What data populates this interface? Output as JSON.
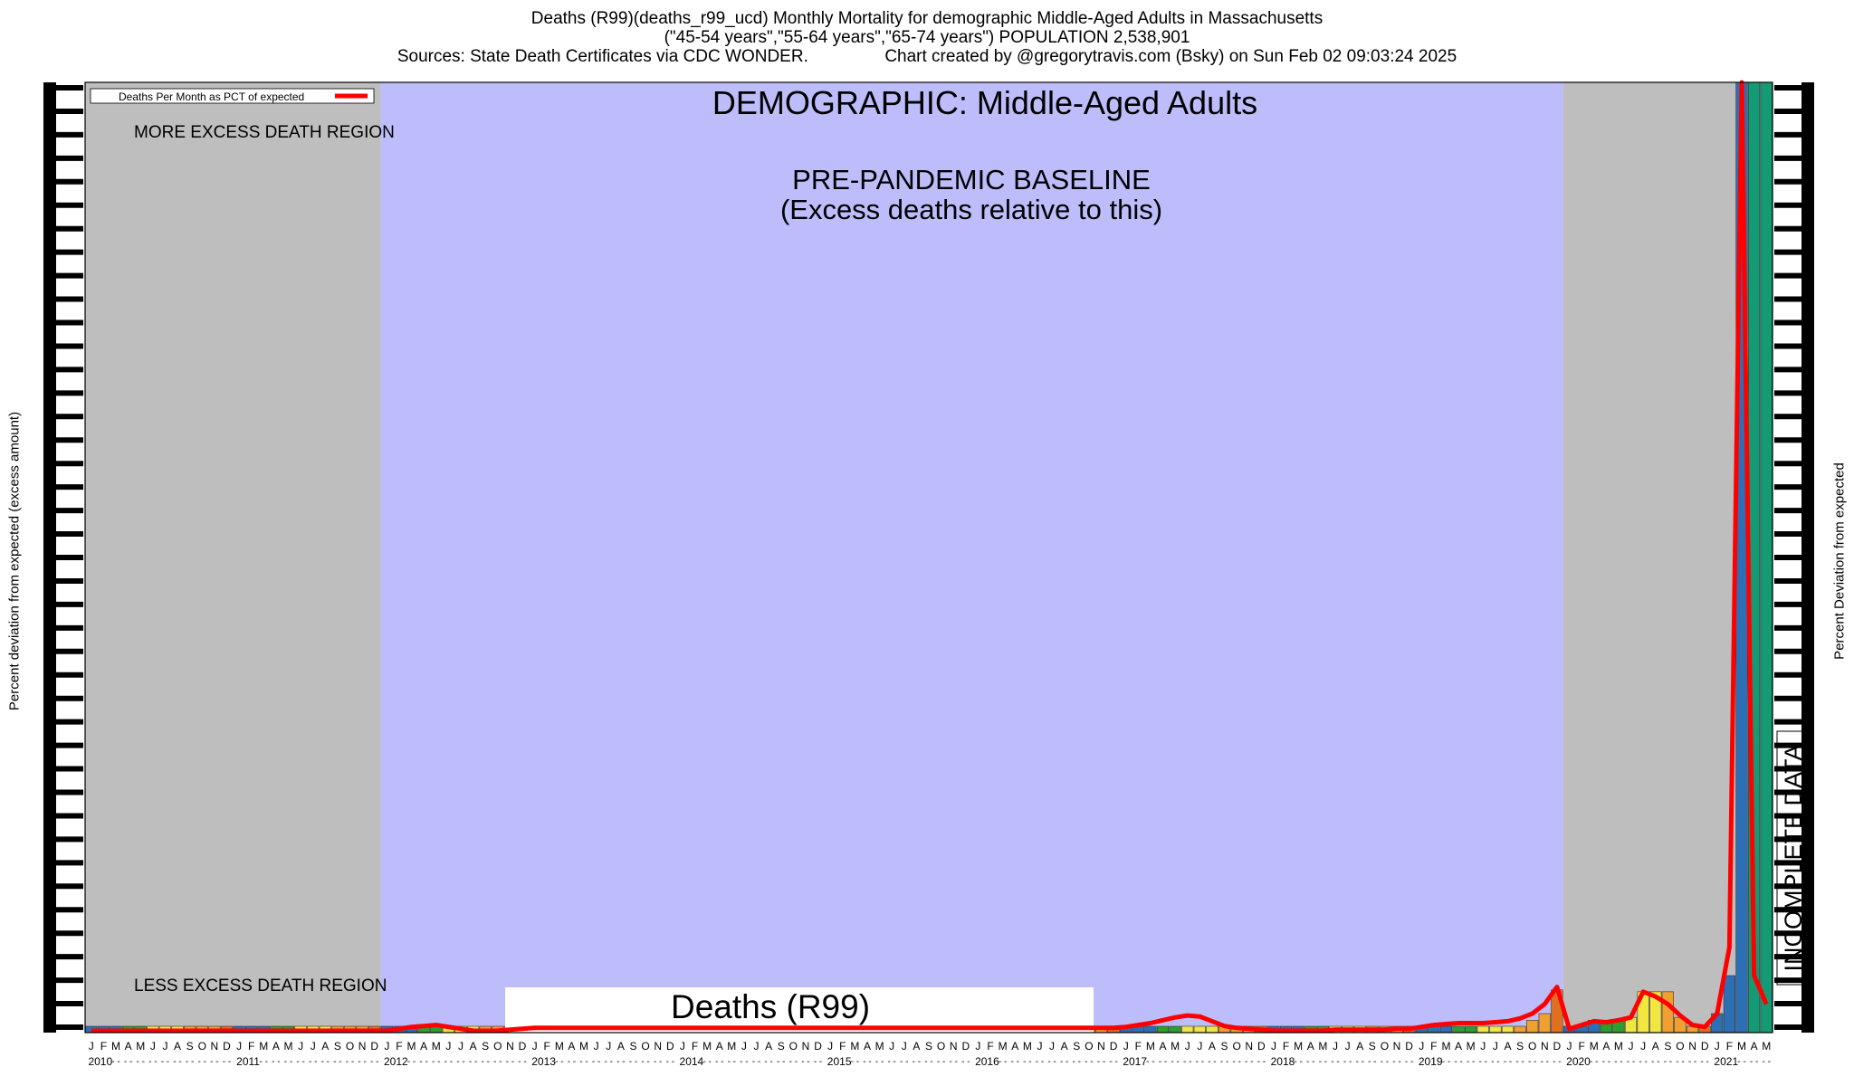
{
  "header": {
    "line1": "Deaths (R99)(deaths_r99_ucd) Monthly Mortality for demographic Middle-Aged Adults in Massachusetts",
    "line2": "(\"45-54 years\",\"55-64 years\",\"65-74 years\") POPULATION 2,538,901",
    "line3": "Sources: State Death Certificates via CDC WONDER.                Chart created by @gregorytravis.com (Bsky) on Sun Feb 02 09:03:24 2025"
  },
  "chart_data": {
    "type": "bar",
    "title": "DEMOGRAPHIC: Middle-Aged Adults",
    "ylabel_left": "Percent deviation from expected (excess amount)",
    "ylabel_right": "Percent Deviation from expected",
    "legend": {
      "label": "Deaths Per Month as PCT of expected",
      "color": "#ff0000",
      "position": "top-left"
    },
    "regions": [
      {
        "label": "MORE EXCESS DEATH REGION",
        "color": "#bebebe"
      },
      {
        "label": "LESS EXCESS DEATH REGION",
        "color": "#bebebe"
      },
      {
        "label": "PRE-PANDEMIC BASELINE",
        "label2": "(Excess deaths relative to this)",
        "color": "#bdbdfc",
        "start": "2012-01",
        "end": "2019-12"
      },
      {
        "label": "INCOMPLETE DATA",
        "color": "#bebebe"
      }
    ],
    "overlay_label": "Deaths (R99)",
    "month_letters": [
      "J",
      "F",
      "M",
      "A",
      "M",
      "J",
      "J",
      "A",
      "S",
      "O",
      "N",
      "D"
    ],
    "years": [
      "2010",
      "2011",
      "2012",
      "2013",
      "2014",
      "2015",
      "2016",
      "2017",
      "2018",
      "2019",
      "2020",
      "2021"
    ],
    "x_start": "2010-01",
    "x_end": "2021-05",
    "ylim": [
      0,
      100
    ],
    "series": [
      {
        "color": "#ff0000",
        "values": [
          0,
          0,
          0,
          0,
          0,
          0,
          0,
          0,
          0,
          0,
          0,
          0,
          0,
          0,
          0,
          0,
          0,
          0,
          0,
          0,
          0,
          0,
          0,
          0,
          0.2,
          0.4,
          0.6,
          0.7,
          0.8,
          0.6,
          0.4,
          0.2,
          0.0,
          0.2,
          0.3,
          0.4,
          0.5,
          0.5,
          0.5,
          0.5,
          0.5,
          0.5,
          0.5,
          0.5,
          0.5,
          0.5,
          0.5,
          0.5,
          0.5,
          0.5,
          0.5,
          0.5,
          0.5,
          0.5,
          0.5,
          0.5,
          0.5,
          0.5,
          0.5,
          0.5,
          0.5,
          0.5,
          0.5,
          0.5,
          0.5,
          0.5,
          0.5,
          0.5,
          0.5,
          0.5,
          0.5,
          0.5,
          0.5,
          0.5,
          0.5,
          0.5,
          0.5,
          0.5,
          0.5,
          0.5,
          0.5,
          0.5,
          0.5,
          0.5,
          0.6,
          0.8,
          1.0,
          1.3,
          1.6,
          1.8,
          1.7,
          1.2,
          0.7,
          0.5,
          0.4,
          0.3,
          0.2,
          0.2,
          0.2,
          0.2,
          0.2,
          0.3,
          0.3,
          0.3,
          0.3,
          0.3,
          0.4,
          0.4,
          0.6,
          0.8,
          0.9,
          1.0,
          1.0,
          1.0,
          1.1,
          1.2,
          1.5,
          2.0,
          3.0,
          4.8,
          0.4,
          0.8,
          1.2,
          1.1,
          1.3,
          1.6,
          4.3,
          3.8,
          3.0,
          1.8,
          0.8,
          0.6,
          2.0,
          9.0,
          100.0,
          6.0,
          3.0
        ]
      }
    ],
    "bar_values": [
      0.7,
      0.7,
      0.7,
      0.7,
      0.7,
      0.7,
      0.7,
      0.7,
      0.7,
      0.7,
      0.7,
      0.7,
      0.7,
      0.7,
      0.7,
      0.7,
      0.7,
      0.7,
      0.7,
      0.7,
      0.7,
      0.7,
      0.7,
      0.7,
      0.5,
      0.5,
      0.5,
      0.5,
      0.5,
      0.5,
      0.5,
      0.5,
      0.5,
      0.5,
      0.5,
      0.5,
      0.5,
      0.5,
      0.5,
      0.5,
      0.5,
      0.5,
      0.5,
      0.5,
      0.5,
      0.5,
      0.5,
      0.5,
      0.5,
      0.5,
      0.5,
      0.5,
      0.5,
      0.5,
      0.5,
      0.5,
      0.5,
      0.5,
      0.5,
      0.5,
      0.5,
      0.5,
      0.5,
      0.5,
      0.5,
      0.5,
      0.5,
      0.5,
      0.5,
      0.5,
      0.5,
      0.5,
      0.5,
      0.5,
      0.5,
      0.5,
      0.5,
      0.5,
      0.5,
      0.5,
      0.5,
      0.5,
      0.5,
      0.5,
      0.5,
      0.5,
      0.5,
      0.5,
      0.5,
      0.5,
      0.5,
      0.5,
      0.5,
      0.5,
      0.5,
      0.5,
      0.7,
      0.7,
      0.7,
      0.7,
      0.7,
      0.7,
      0.7,
      0.7,
      0.7,
      0.7,
      0.7,
      0.7,
      0.5,
      0.5,
      0.5,
      0.5,
      0.5,
      0.5,
      0.5,
      0.5,
      0.5,
      1.3,
      2.0,
      4.5,
      0.5,
      1.0,
      1.3,
      1.3,
      1.3,
      1.6,
      4.3,
      4.3,
      4.3,
      1.6,
      0.8,
      0.6,
      2.0,
      6.0,
      100,
      100,
      100
    ],
    "bar_colors": [
      "#2c6fb5",
      "#2c6fb5",
      "#2c6fb5",
      "#2ca02c",
      "#2ca02c",
      "#f2e640",
      "#f2e640",
      "#f2e640",
      "#f0a030",
      "#f0a030",
      "#f0a030",
      "#e07020",
      "#2c6fb5",
      "#2c6fb5",
      "#2c6fb5",
      "#2ca02c",
      "#2ca02c",
      "#f2e640",
      "#f2e640",
      "#f2e640",
      "#f0a030",
      "#f0a030",
      "#f0a030",
      "#e07020",
      "#2c6fb5",
      "#2c6fb5",
      "#2c6fb5",
      "#2ca02c",
      "#2ca02c",
      "#f2e640",
      "#f2e640",
      "#f2e640",
      "#f0a030",
      "#f0a030",
      "#f0a030",
      "#e07020",
      "#2c6fb5",
      "#2c6fb5",
      "#2c6fb5",
      "#2ca02c",
      "#2ca02c",
      "#f2e640",
      "#f2e640",
      "#f2e640",
      "#f0a030",
      "#f0a030",
      "#f0a030",
      "#e07020",
      "#2c6fb5",
      "#2c6fb5",
      "#2c6fb5",
      "#2ca02c",
      "#2ca02c",
      "#f2e640",
      "#f2e640",
      "#f2e640",
      "#f0a030",
      "#f0a030",
      "#f0a030",
      "#e07020",
      "#2c6fb5",
      "#2c6fb5",
      "#2c6fb5",
      "#2ca02c",
      "#2ca02c",
      "#f2e640",
      "#f2e640",
      "#f2e640",
      "#f0a030",
      "#f0a030",
      "#f0a030",
      "#e07020",
      "#2c6fb5",
      "#2c6fb5",
      "#2c6fb5",
      "#2ca02c",
      "#2ca02c",
      "#f2e640",
      "#f2e640",
      "#f2e640",
      "#f0a030",
      "#f0a030",
      "#f0a030",
      "#e07020",
      "#2c6fb5",
      "#2c6fb5",
      "#2c6fb5",
      "#2ca02c",
      "#2ca02c",
      "#f2e640",
      "#f2e640",
      "#f2e640",
      "#f0a030",
      "#f0a030",
      "#f0a030",
      "#e07020",
      "#2c6fb5",
      "#2c6fb5",
      "#2c6fb5",
      "#2ca02c",
      "#2ca02c",
      "#f2e640",
      "#f2e640",
      "#f2e640",
      "#f0a030",
      "#f0a030",
      "#f0a030",
      "#e07020",
      "#2c6fb5",
      "#2c6fb5",
      "#2c6fb5",
      "#2ca02c",
      "#2ca02c",
      "#f2e640",
      "#f2e640",
      "#f2e640",
      "#f0a030",
      "#f0a030",
      "#f0a030",
      "#e07020",
      "#2c6fb5",
      "#2c6fb5",
      "#2c6fb5",
      "#2ca02c",
      "#2ca02c",
      "#f2e640",
      "#f2e640",
      "#f2e640",
      "#f0a030",
      "#f0a030",
      "#f0a030",
      "#e07020",
      "#2c6fb5",
      "#2c6fb5",
      "#2c6fb5",
      "#149a74",
      "#149a74"
    ]
  }
}
